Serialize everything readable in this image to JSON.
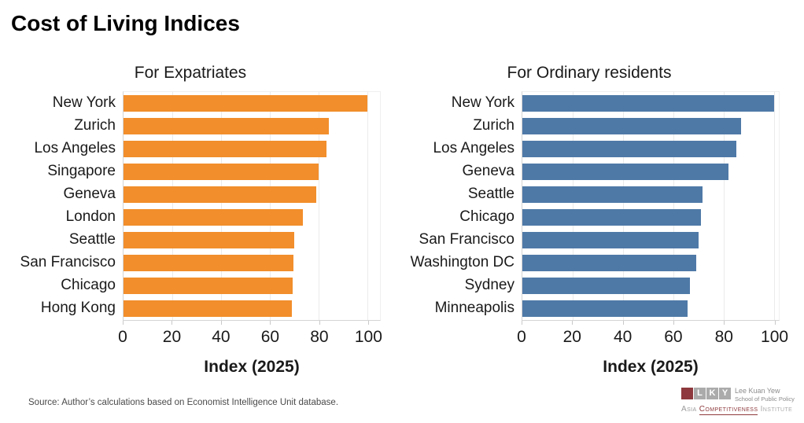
{
  "page": {
    "title": "Cost of Living Indices",
    "source_note": "Source: Author’s calculations based on Economist Intelligence Unit database.",
    "background": "#ffffff"
  },
  "colors": {
    "expatriates_bar": "#F28E2B",
    "residents_bar": "#4E79A7",
    "gridline": "#ebebeb",
    "axis_line": "#d4d4d4",
    "text": "#1a1a1a",
    "source_text": "#4a4a4a",
    "logo_maroon": "#8E393D",
    "logo_gray": "#9a9a9a"
  },
  "chart_data": [
    {
      "type": "bar",
      "orientation": "horizontal",
      "title": "For Expatriates",
      "categories": [
        "New York",
        "Zurich",
        "Los Angeles",
        "Singapore",
        "Geneva",
        "London",
        "Seattle",
        "San Francisco",
        "Chicago",
        "Hong Kong"
      ],
      "values": [
        100,
        84,
        83,
        80,
        79,
        73.5,
        70,
        69.7,
        69.3,
        69
      ],
      "bar_color": "#F28E2B",
      "xlabel": "Index (2025)",
      "xticks": [
        0,
        20,
        40,
        60,
        80,
        100
      ],
      "xlim": [
        0,
        105
      ],
      "grid": true,
      "legend": false
    },
    {
      "type": "bar",
      "orientation": "horizontal",
      "title": "For Ordinary residents",
      "categories": [
        "New York",
        "Zurich",
        "Los Angeles",
        "Geneva",
        "Seattle",
        "Chicago",
        "San Francisco",
        "Washington DC",
        "Sydney",
        "Minneapolis"
      ],
      "values": [
        100,
        87,
        85,
        82,
        71.5,
        71,
        70,
        69,
        66.5,
        65.7
      ],
      "bar_color": "#4E79A7",
      "xlabel": "Index (2025)",
      "xticks": [
        0,
        20,
        40,
        60,
        80,
        100
      ],
      "xlim": [
        0,
        102
      ],
      "grid": true,
      "legend": false
    }
  ],
  "logo": {
    "tiles": [
      "L",
      "K",
      "Y"
    ],
    "line1": "Lee Kuan Yew",
    "line2": "School of Public Policy",
    "line3_parts": [
      "Asia",
      "Competitiveness",
      "Institute"
    ]
  }
}
